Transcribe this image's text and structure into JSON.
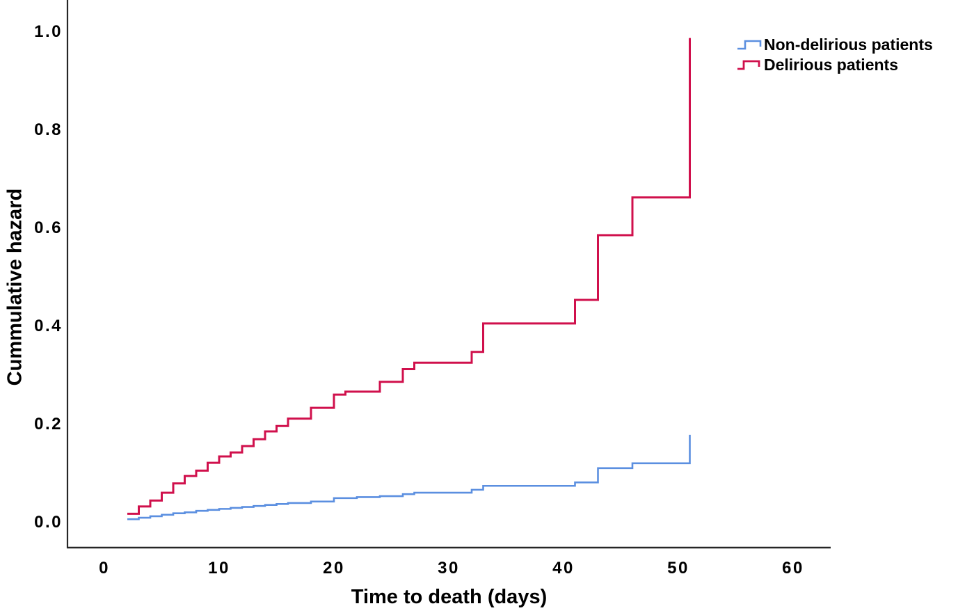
{
  "chart_data": {
    "type": "line",
    "subtype": "step-post",
    "title": "",
    "xlabel": "Time to death (days)",
    "ylabel": "Cummulative hazard",
    "xlim": [
      0,
      63
    ],
    "ylim": [
      0,
      1.0
    ],
    "x_ticks": [
      "0",
      "10",
      "20",
      "30",
      "40",
      "50",
      "60"
    ],
    "y_ticks": [
      "0.0",
      "0.2",
      "0.4",
      "0.6",
      "0.8",
      "1.0"
    ],
    "grid": false,
    "legend_position": "top-right",
    "axis_color": "#262626",
    "series": [
      {
        "name": "Non-delirious patients",
        "color": "#5B8FE0",
        "points": [
          [
            2,
            0.004
          ],
          [
            3,
            0.007
          ],
          [
            4,
            0.01
          ],
          [
            5,
            0.013
          ],
          [
            6,
            0.016
          ],
          [
            7,
            0.018
          ],
          [
            8,
            0.021
          ],
          [
            9,
            0.023
          ],
          [
            10,
            0.025
          ],
          [
            11,
            0.027
          ],
          [
            12,
            0.029
          ],
          [
            13,
            0.031
          ],
          [
            14,
            0.033
          ],
          [
            15,
            0.035
          ],
          [
            16,
            0.037
          ],
          [
            18,
            0.04
          ],
          [
            20,
            0.047
          ],
          [
            22,
            0.049
          ],
          [
            24,
            0.051
          ],
          [
            26,
            0.055
          ],
          [
            27,
            0.058
          ],
          [
            32,
            0.064
          ],
          [
            33,
            0.072
          ],
          [
            41,
            0.079
          ],
          [
            43,
            0.108
          ],
          [
            46,
            0.118
          ],
          [
            51,
            0.176
          ]
        ]
      },
      {
        "name": "Delirious patients",
        "color": "#D0104C",
        "points": [
          [
            2,
            0.015
          ],
          [
            3,
            0.03
          ],
          [
            4,
            0.042
          ],
          [
            5,
            0.058
          ],
          [
            6,
            0.077
          ],
          [
            7,
            0.092
          ],
          [
            8,
            0.103
          ],
          [
            9,
            0.119
          ],
          [
            10,
            0.132
          ],
          [
            11,
            0.14
          ],
          [
            12,
            0.153
          ],
          [
            13,
            0.167
          ],
          [
            14,
            0.183
          ],
          [
            15,
            0.194
          ],
          [
            16,
            0.209
          ],
          [
            18,
            0.231
          ],
          [
            20,
            0.258
          ],
          [
            21,
            0.264
          ],
          [
            24,
            0.284
          ],
          [
            26,
            0.31
          ],
          [
            27,
            0.323
          ],
          [
            32,
            0.345
          ],
          [
            33,
            0.403
          ],
          [
            41,
            0.451
          ],
          [
            43,
            0.583
          ],
          [
            46,
            0.66
          ],
          [
            51,
            0.985
          ]
        ]
      }
    ]
  }
}
